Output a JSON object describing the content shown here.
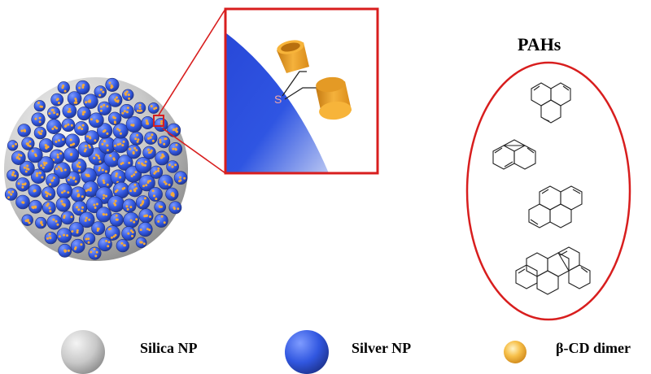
{
  "zoom_inset": {
    "atom_label": "S"
  },
  "pahs_panel": {
    "title": "PAHs",
    "molecules": [
      "triphenylene-structure",
      "phenanthrene-structure",
      "pyrene-structure",
      "benzo-a-pyrene-structure"
    ]
  },
  "legend": {
    "items": [
      {
        "label": "Silica NP",
        "icon": "silica-sphere-icon"
      },
      {
        "label": "Silver NP",
        "icon": "silver-sphere-icon"
      },
      {
        "label": "β-CD dimer",
        "icon": "cd-dimer-sphere-icon"
      }
    ]
  },
  "colors": {
    "frame_red": "#d81e1e",
    "silver_blue": "#3157e0",
    "cd_gold": "#f0a329",
    "silica_grey": "#d2d2d2"
  }
}
